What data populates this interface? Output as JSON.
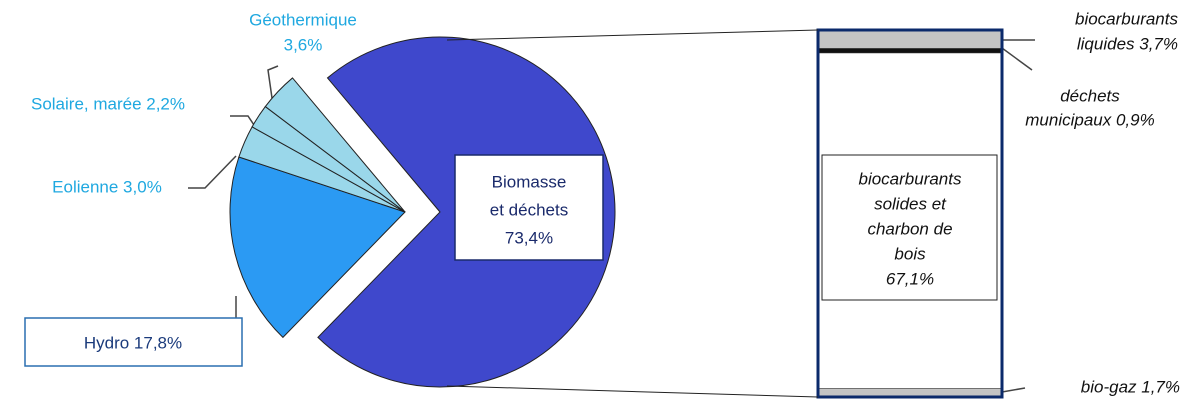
{
  "chart_data": [
    {
      "type": "pie",
      "labels": [
        [
          "Biomasse",
          "et déchets",
          "73,4%"
        ],
        [
          "Hydro 17,8%"
        ],
        [
          "Eolienne 3,0%"
        ],
        [
          "Solaire, marée 2,2%"
        ],
        [
          "Géothermique",
          "3,6%"
        ]
      ],
      "values": [
        73.4,
        17.8,
        3.0,
        2.2,
        3.6
      ],
      "colors": [
        "#3f48cc",
        "#2b9af3",
        "#9ad7ea",
        "#9ad7ea",
        "#9ad7ea"
      ]
    },
    {
      "type": "bar",
      "labels": [
        [
          "biocarburants",
          "liquides 3,7%"
        ],
        [
          "déchets",
          "municipaux 0,9%"
        ],
        [
          "biocarburants",
          "solides et",
          "charbon de",
          "bois",
          "67,1%"
        ],
        [
          "bio-gaz 1,7%"
        ]
      ],
      "values": [
        3.7,
        0.9,
        67.1,
        1.7
      ],
      "colors": [
        "#c4c4c4",
        "#111111",
        "#ffffff",
        "#c4c4c4"
      ]
    }
  ]
}
